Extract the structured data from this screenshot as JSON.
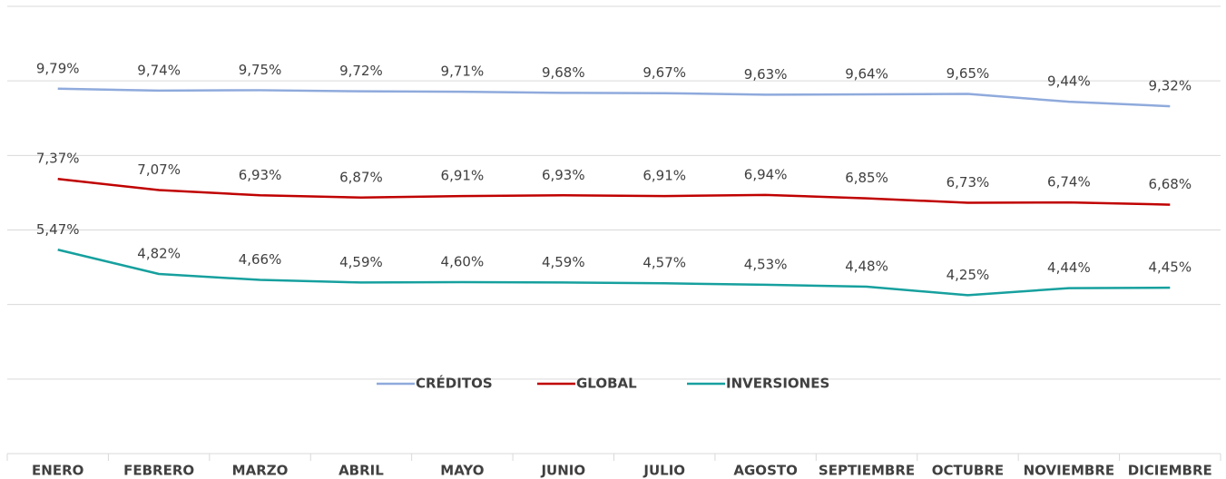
{
  "chart_data": {
    "type": "line",
    "categories": [
      "ENERO",
      "FEBRERO",
      "MARZO",
      "ABRIL",
      "MAYO",
      "JUNIO",
      "JULIO",
      "AGOSTO",
      "SEPTIEMBRE",
      "OCTUBRE",
      "NOVIEMBRE",
      "DICIEMBRE"
    ],
    "series": [
      {
        "name": "CRÉDITOS",
        "color": "#8faadc",
        "values": [
          9.79,
          9.74,
          9.75,
          9.72,
          9.71,
          9.68,
          9.67,
          9.63,
          9.64,
          9.65,
          9.44,
          9.32
        ],
        "value_labels": [
          "9,79%",
          "9,74%",
          "9,75%",
          "9,72%",
          "9,71%",
          "9,68%",
          "9,67%",
          "9,63%",
          "9,64%",
          "9,65%",
          "9,44%",
          "9,32%"
        ]
      },
      {
        "name": "GLOBAL",
        "color": "#c00000",
        "values": [
          7.37,
          7.07,
          6.93,
          6.87,
          6.91,
          6.93,
          6.91,
          6.94,
          6.85,
          6.73,
          6.74,
          6.68
        ],
        "value_labels": [
          "7,37%",
          "7,07%",
          "6,93%",
          "6,87%",
          "6,91%",
          "6,93%",
          "6,91%",
          "6,94%",
          "6,85%",
          "6,73%",
          "6,74%",
          "6,68%"
        ]
      },
      {
        "name": "INVERSIONES",
        "color": "#16a09e",
        "values": [
          5.47,
          4.82,
          4.66,
          4.59,
          4.6,
          4.59,
          4.57,
          4.53,
          4.48,
          4.25,
          4.44,
          4.45
        ],
        "value_labels": [
          "5,47%",
          "4,82%",
          "4,66%",
          "4,59%",
          "4,60%",
          "4,59%",
          "4,57%",
          "4,53%",
          "4,48%",
          "4,25%",
          "4,44%",
          "4,45%"
        ]
      }
    ],
    "ylim": [
      0,
      12
    ],
    "yticks": [
      0,
      2,
      4,
      6,
      8,
      10,
      12
    ],
    "grid": true,
    "legend": "center"
  }
}
